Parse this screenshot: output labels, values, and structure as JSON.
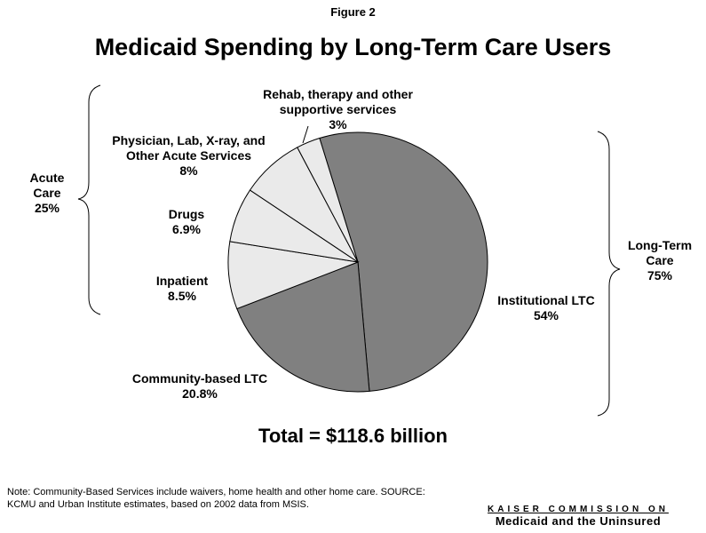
{
  "figure_label": "Figure 2",
  "title": "Medicaid Spending by Long-Term Care Users",
  "total_label": "Total = $118.6 billion",
  "note": "Note: Community-Based Services include waivers, home health and other home care. SOURCE: KCMU and Urban Institute estimates, based on 2002 data from MSIS.",
  "brand": {
    "line1": "KAISER COMMISSION ON",
    "line2": "Medicaid and the Uninsured"
  },
  "groups": {
    "acute": {
      "line1": "Acute",
      "line2": "Care",
      "value": "25%"
    },
    "ltc": {
      "line1": "Long-Term",
      "line2": "Care",
      "value": "75%"
    }
  },
  "slice_labels": {
    "institutional": {
      "line1": "Institutional LTC",
      "value": "54%"
    },
    "community": {
      "line1": "Community-based LTC",
      "value": "20.8%"
    },
    "inpatient": {
      "line1": "Inpatient",
      "value": "8.5%"
    },
    "drugs": {
      "line1": "Drugs",
      "value": "6.9%"
    },
    "physician": {
      "line1": "Physician, Lab, X-ray, and",
      "line2": "Other Acute Services",
      "value": "8%"
    },
    "rehab": {
      "line1": "Rehab, therapy and other",
      "line2": "supportive services",
      "value": "3%"
    }
  },
  "colors": {
    "ltc": "#808080",
    "acute": "#eaeaea",
    "stroke": "#000000"
  },
  "chart_data": {
    "type": "pie",
    "title": "Medicaid Spending by Long-Term Care Users",
    "slices": [
      {
        "label": "Institutional LTC",
        "value": 54,
        "group": "Long-Term Care"
      },
      {
        "label": "Community-based LTC",
        "value": 20.8,
        "group": "Long-Term Care"
      },
      {
        "label": "Inpatient",
        "value": 8.5,
        "group": "Acute Care"
      },
      {
        "label": "Drugs",
        "value": 6.9,
        "group": "Acute Care"
      },
      {
        "label": "Physician, Lab, X-ray, and Other Acute Services",
        "value": 8,
        "group": "Acute Care"
      },
      {
        "label": "Rehab, therapy and other supportive services",
        "value": 3,
        "group": "Acute Care"
      }
    ],
    "groups": [
      {
        "label": "Acute Care",
        "value": 25
      },
      {
        "label": "Long-Term Care",
        "value": 75
      }
    ],
    "total": "$118.6 billion"
  }
}
